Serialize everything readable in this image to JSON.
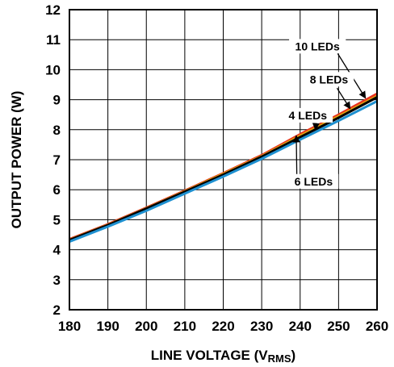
{
  "chart_data": {
    "type": "line",
    "xlabel": "LINE VOLTAGE (V",
    "xlabel_sub": "RMS",
    "xlabel_suffix": ")",
    "ylabel": "OUTPUT POWER (W)",
    "xlim": [
      180,
      260
    ],
    "ylim": [
      2,
      12
    ],
    "xticks": [
      "180",
      "190",
      "200",
      "210",
      "220",
      "230",
      "240",
      "250",
      "260"
    ],
    "yticks": [
      "2",
      "3",
      "4",
      "5",
      "6",
      "7",
      "8",
      "9",
      "10",
      "11",
      "12"
    ],
    "grid": true,
    "series": [
      {
        "name": "10 LEDs",
        "color": "#e8301c",
        "x": [
          180,
          190,
          200,
          210,
          220,
          230,
          240,
          250,
          260
        ],
        "y": [
          4.35,
          4.85,
          5.4,
          5.97,
          6.55,
          7.15,
          7.85,
          8.5,
          9.2
        ]
      },
      {
        "name": "8 LEDs",
        "color": "#e0a010",
        "x": [
          180,
          190,
          200,
          210,
          220,
          230,
          240,
          250,
          260
        ],
        "y": [
          4.33,
          4.83,
          5.38,
          5.95,
          6.53,
          7.12,
          7.8,
          8.45,
          9.12
        ]
      },
      {
        "name": "4 LEDs",
        "color": "#000000",
        "x": [
          180,
          190,
          200,
          210,
          220,
          230,
          240,
          250,
          260
        ],
        "y": [
          4.32,
          4.82,
          5.37,
          5.93,
          6.5,
          7.1,
          7.75,
          8.4,
          9.08
        ]
      },
      {
        "name": "6 LEDs",
        "color": "#1e90d0",
        "x": [
          180,
          190,
          200,
          210,
          220,
          230,
          240,
          250,
          260
        ],
        "y": [
          4.27,
          4.77,
          5.3,
          5.87,
          6.44,
          7.03,
          7.67,
          8.3,
          8.95
        ]
      }
    ],
    "annotations": [
      {
        "text": "10 LEDs",
        "tx": 244.5,
        "ty": 10.7,
        "ax": 257,
        "ay": 9.05
      },
      {
        "text": "8 LEDs",
        "tx": 247.5,
        "ty": 9.6,
        "ax": 253,
        "ay": 8.7
      },
      {
        "text": "4 LEDs",
        "tx": 242,
        "ty": 8.4,
        "ax": 244,
        "ay": 8.0
      },
      {
        "text": "6 LEDs",
        "tx": 243.5,
        "ty": 6.2,
        "ax": 239,
        "ay": 7.8
      }
    ]
  }
}
